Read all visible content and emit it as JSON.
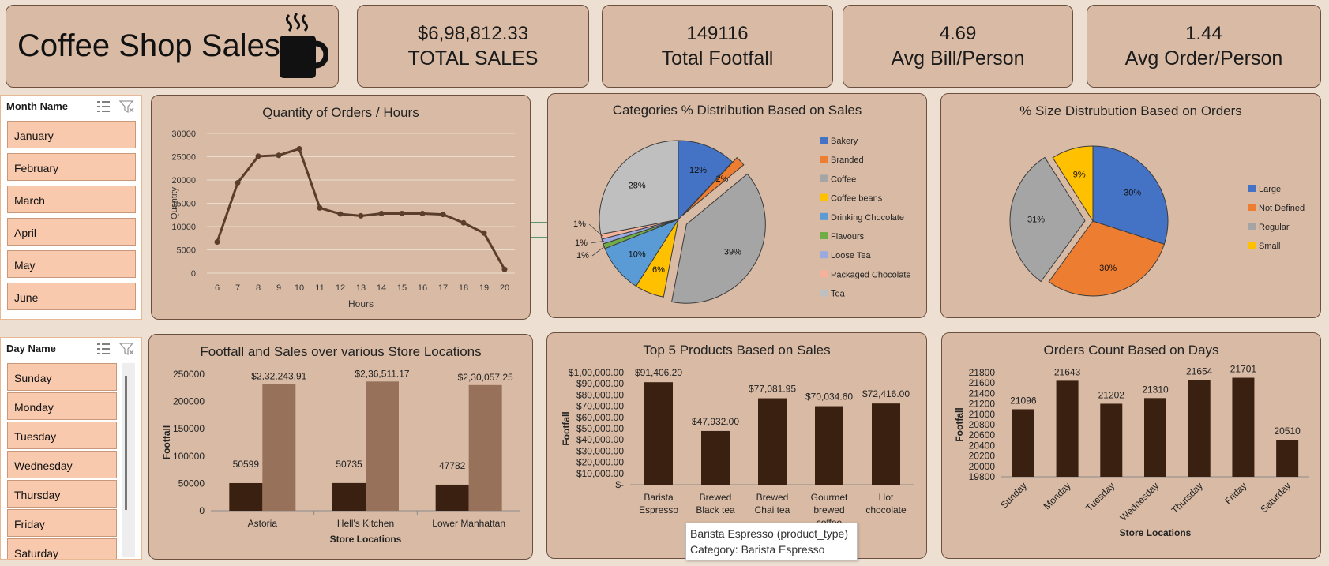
{
  "header": {
    "title": "Coffee Shop Sales",
    "icon": "coffee-cup-icon"
  },
  "kpis": [
    {
      "value": "$6,98,812.33",
      "label": "TOTAL SALES"
    },
    {
      "value": "149116",
      "label": "Total Footfall"
    },
    {
      "value": "4.69",
      "label": "Avg Bill/Person"
    },
    {
      "value": "1.44",
      "label": "Avg Order/Person"
    }
  ],
  "slicers": {
    "month": {
      "header": "Month Name",
      "items": [
        "January",
        "February",
        "March",
        "April",
        "May",
        "June"
      ]
    },
    "day": {
      "header": "Day Name",
      "items": [
        "Sunday",
        "Monday",
        "Tuesday",
        "Wednesday",
        "Thursday",
        "Friday",
        "Saturday"
      ]
    }
  },
  "tooltip": {
    "line1": "Barista Espresso (product_type)",
    "line2": "Category: Barista Espresso"
  },
  "colors": {
    "dark_brown": "#3a2010",
    "light_brown": "#97715a",
    "line": "#5a3d2b"
  },
  "chart_data": [
    {
      "id": "orders_hours",
      "type": "line",
      "title": "Quantity of Orders / Hours",
      "xlabel": "Hours",
      "ylabel": "Quantity",
      "x": [
        6,
        7,
        8,
        9,
        10,
        11,
        12,
        13,
        14,
        15,
        16,
        17,
        18,
        19,
        20
      ],
      "values": [
        6700,
        19400,
        25100,
        25300,
        26700,
        14000,
        12700,
        12300,
        12800,
        12800,
        12800,
        12600,
        10800,
        8600,
        800
      ],
      "ylim": [
        0,
        30000
      ],
      "yticks": [
        0,
        5000,
        10000,
        15000,
        20000,
        25000,
        30000
      ],
      "grid": true
    },
    {
      "id": "categories_pie",
      "type": "pie",
      "title": "Categories % Distribution Based on Sales",
      "labels": [
        "Bakery",
        "Branded",
        "Coffee",
        "Coffee beans",
        "Drinking Chocolate",
        "Flavours",
        "Loose Tea",
        "Packaged Chocolate",
        "Tea"
      ],
      "values": [
        12,
        2,
        39,
        6,
        10,
        1,
        1,
        1,
        28
      ],
      "value_labels": [
        "12%",
        "2%",
        "39%",
        "6%",
        "10%",
        "1%",
        "1%",
        "1%",
        "28%"
      ],
      "colors": [
        "#4472c4",
        "#ed7d31",
        "#a5a5a5",
        "#ffc000",
        "#5b9bd5",
        "#70ad47",
        "#9aa9e0",
        "#f4b29a",
        "#bfbfbf"
      ],
      "legend": "right"
    },
    {
      "id": "size_pie",
      "type": "pie",
      "title": "% Size Distrubution Based on Orders",
      "labels": [
        "Large",
        "Not Defined",
        "Regular",
        "Small"
      ],
      "values": [
        30,
        30,
        31,
        9
      ],
      "value_labels": [
        "30%",
        "30%",
        "31%",
        "9%"
      ],
      "colors": [
        "#4472c4",
        "#ed7d31",
        "#a5a5a5",
        "#ffc000"
      ],
      "legend": "right"
    },
    {
      "id": "store_locations",
      "type": "bar",
      "title": "Footfall and Sales over various Store Locations",
      "xlabel": "Store Locations",
      "ylabel": "Footfall",
      "categories": [
        "Astoria",
        "Hell's Kitchen",
        "Lower Manhattan"
      ],
      "series": [
        {
          "values": [
            50599,
            50735,
            47782
          ],
          "labels": [
            "50599",
            "50735",
            "47782"
          ],
          "color": "#3a2010"
        },
        {
          "values": [
            232243.91,
            236511.17,
            230057.25
          ],
          "labels": [
            "$2,32,243.91",
            "$2,36,511.17",
            "$2,30,057.25"
          ],
          "color": "#97715a"
        }
      ],
      "ylim": [
        0,
        250000
      ],
      "yticks": [
        0,
        50000,
        100000,
        150000,
        200000,
        250000
      ]
    },
    {
      "id": "top_products",
      "type": "bar",
      "title": "Top 5 Products Based on Sales",
      "ylabel": "Footfall",
      "categories": [
        [
          "Barista",
          "Espresso"
        ],
        [
          "Brewed",
          "Black tea"
        ],
        [
          "Brewed",
          "Chai tea"
        ],
        [
          "Gourmet",
          "brewed",
          "coffee"
        ],
        [
          "Hot",
          "chocolate"
        ]
      ],
      "values": [
        91406.2,
        47932.0,
        77081.95,
        70034.6,
        72416.0
      ],
      "value_labels": [
        "$91,406.20",
        "$47,932.00",
        "$77,081.95",
        "$70,034.60",
        "$72,416.00"
      ],
      "ylim": [
        0,
        100000
      ],
      "yticks": [
        0,
        10000,
        20000,
        30000,
        40000,
        50000,
        60000,
        70000,
        80000,
        90000,
        100000
      ],
      "ytick_labels": [
        "$-",
        "$10,000.00",
        "$20,000.00",
        "$30,000.00",
        "$40,000.00",
        "$50,000.00",
        "$60,000.00",
        "$70,000.00",
        "$80,000.00",
        "$90,000.00",
        "$1,00,000.00"
      ]
    },
    {
      "id": "orders_days",
      "type": "bar",
      "title": "Orders Count Based on Days",
      "xlabel": "Store Locations",
      "ylabel": "Footfall",
      "categories": [
        "Sunday",
        "Monday",
        "Tuesday",
        "Wednesday",
        "Thursday",
        "Friday",
        "Saturday"
      ],
      "values": [
        21096,
        21643,
        21202,
        21310,
        21654,
        21701,
        20510
      ],
      "value_labels": [
        "21096",
        "21643",
        "21202",
        "21310",
        "21654",
        "21701",
        "20510"
      ],
      "ylim": [
        19800,
        21800
      ],
      "yticks": [
        19800,
        20000,
        20200,
        20400,
        20600,
        20800,
        21000,
        21200,
        21400,
        21600,
        21800
      ]
    }
  ]
}
